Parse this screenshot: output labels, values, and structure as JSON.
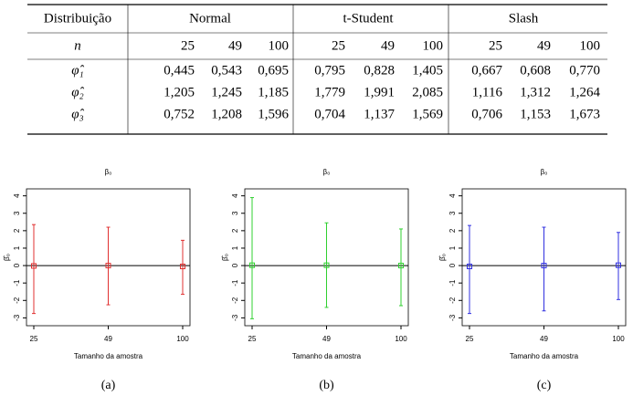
{
  "table": {
    "header": [
      "Distribuição",
      "Normal",
      "t-Student",
      "Slash"
    ],
    "n_row": [
      "n",
      "25",
      "49",
      "100",
      "25",
      "49",
      "100",
      "25",
      "49",
      "100"
    ],
    "rows": [
      [
        "φ̂₁",
        "0,445",
        "0,543",
        "0,695",
        "0,795",
        "0,828",
        "1,405",
        "0,667",
        "0,608",
        "0,770"
      ],
      [
        "φ̂₂",
        "1,205",
        "1,245",
        "1,185",
        "1,779",
        "1,991",
        "2,085",
        "1,116",
        "1,312",
        "1,264"
      ],
      [
        "φ̂₃",
        "0,752",
        "1,208",
        "1,596",
        "0,704",
        "1,137",
        "1,569",
        "0,706",
        "1,153",
        "1,673"
      ]
    ]
  },
  "chart_data": [
    {
      "type": "errorbar",
      "title": "β₀",
      "xlabel": "Tamanho da amostra",
      "ylabel": "β̂₀",
      "categories": [
        "25",
        "49",
        "100"
      ],
      "values": [
        -0.02,
        0.0,
        -0.05
      ],
      "lower": [
        -2.75,
        -2.25,
        -1.65
      ],
      "upper": [
        2.35,
        2.2,
        1.45
      ],
      "color": "#e03030",
      "ylim": [
        -3.45,
        4.4
      ],
      "yticks": [
        -3,
        -2,
        -1,
        0,
        1,
        2,
        3,
        4
      ],
      "hline": 0,
      "caption": "(a)"
    },
    {
      "type": "errorbar",
      "title": "β₀",
      "xlabel": "Tamanho da amostra",
      "ylabel": "β̂₀",
      "categories": [
        "25",
        "49",
        "100"
      ],
      "values": [
        0.02,
        0.02,
        0.0
      ],
      "lower": [
        -3.05,
        -2.4,
        -2.3
      ],
      "upper": [
        3.9,
        2.45,
        2.1
      ],
      "color": "#30d030",
      "ylim": [
        -3.45,
        4.4
      ],
      "yticks": [
        -3,
        -2,
        -1,
        0,
        1,
        2,
        3,
        4
      ],
      "hline": 0,
      "caption": "(b)"
    },
    {
      "type": "errorbar",
      "title": "β₀",
      "xlabel": "Tamanho da amostra",
      "ylabel": "β̂₀",
      "categories": [
        "25",
        "49",
        "100"
      ],
      "values": [
        -0.05,
        0.0,
        0.02
      ],
      "lower": [
        -2.75,
        -2.6,
        -1.95
      ],
      "upper": [
        2.3,
        2.2,
        1.9
      ],
      "color": "#3030e0",
      "ylim": [
        -3.45,
        4.4
      ],
      "yticks": [
        -3,
        -2,
        -1,
        0,
        1,
        2,
        3,
        4
      ],
      "hline": 0,
      "caption": "(c)"
    }
  ]
}
